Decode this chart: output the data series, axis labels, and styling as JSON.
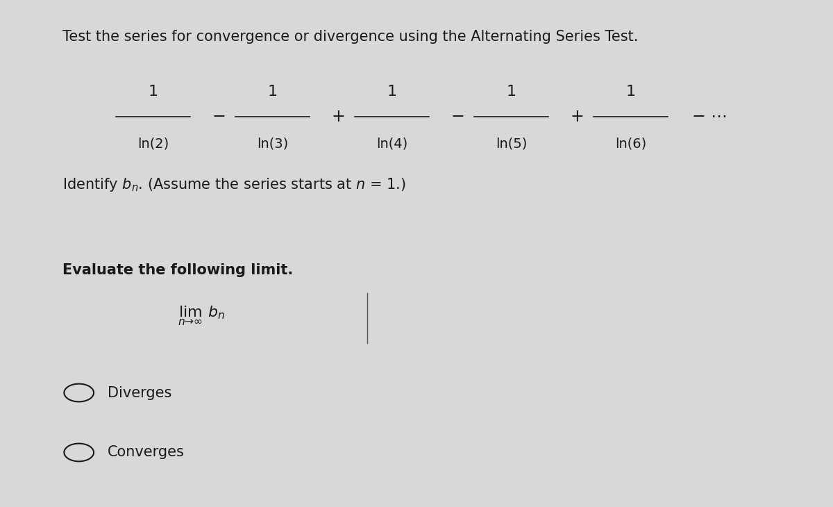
{
  "background_color": "#d8d8d8",
  "title_text": "Test the series for convergence or divergence using the Alternating Series Test.",
  "title_fontsize": 15,
  "title_color": "#1a1a1a",
  "series_terms": [
    {
      "num": "1",
      "den": "ln(2)",
      "sign_before": "",
      "color": "#cc0000"
    },
    {
      "num": "1",
      "den": "ln(3)",
      "sign_before": "−",
      "color": "#cc0000"
    },
    {
      "num": "1",
      "den": "ln(4)",
      "sign_before": "+",
      "color": "#cc0000"
    },
    {
      "num": "1",
      "den": "ln(5)",
      "sign_before": "−",
      "color": "#cc0000"
    },
    {
      "num": "1",
      "den": "ln(6)",
      "sign_before": "+",
      "color": "#cc0000"
    }
  ],
  "identify_text": "Identify $b_n$. (Assume the series starts at $n$ = 1.)",
  "evaluate_text": "Evaluate the following limit.",
  "limit_text": "$\\lim_{n\\to\\infty} b_n$",
  "option1": "Diverges",
  "option2": "Converges",
  "text_color": "#1a1a1a",
  "radio_color": "#1a1a1a",
  "font_size_body": 14,
  "font_size_options": 15
}
